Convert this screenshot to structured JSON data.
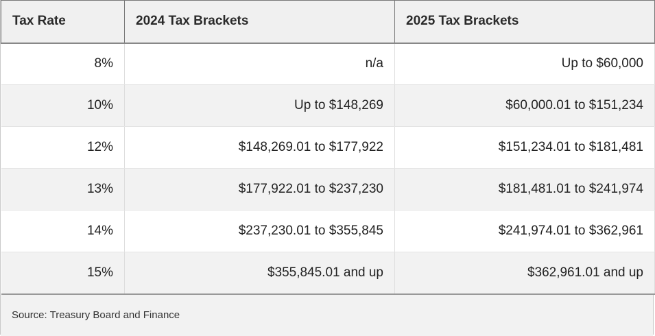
{
  "table": {
    "headers": [
      "Tax Rate",
      "2024 Tax Brackets",
      "2025 Tax Brackets"
    ],
    "rows": [
      [
        "8%",
        "n/a",
        "Up to $60,000"
      ],
      [
        "10%",
        "Up to $148,269",
        "$60,000.01 to $151,234"
      ],
      [
        "12%",
        "$148,269.01 to $177,922",
        "$151,234.01 to $181,481"
      ],
      [
        "13%",
        "$177,922.01 to $237,230",
        "$181,481.01 to $241,974"
      ],
      [
        "14%",
        "$237,230.01 to $355,845",
        "$241,974.01 to $362,961"
      ],
      [
        "15%",
        "$355,845.01 and up",
        "$362,961.01 and up"
      ]
    ]
  },
  "footer": {
    "source": "Source: Treasury Board and Finance"
  }
}
